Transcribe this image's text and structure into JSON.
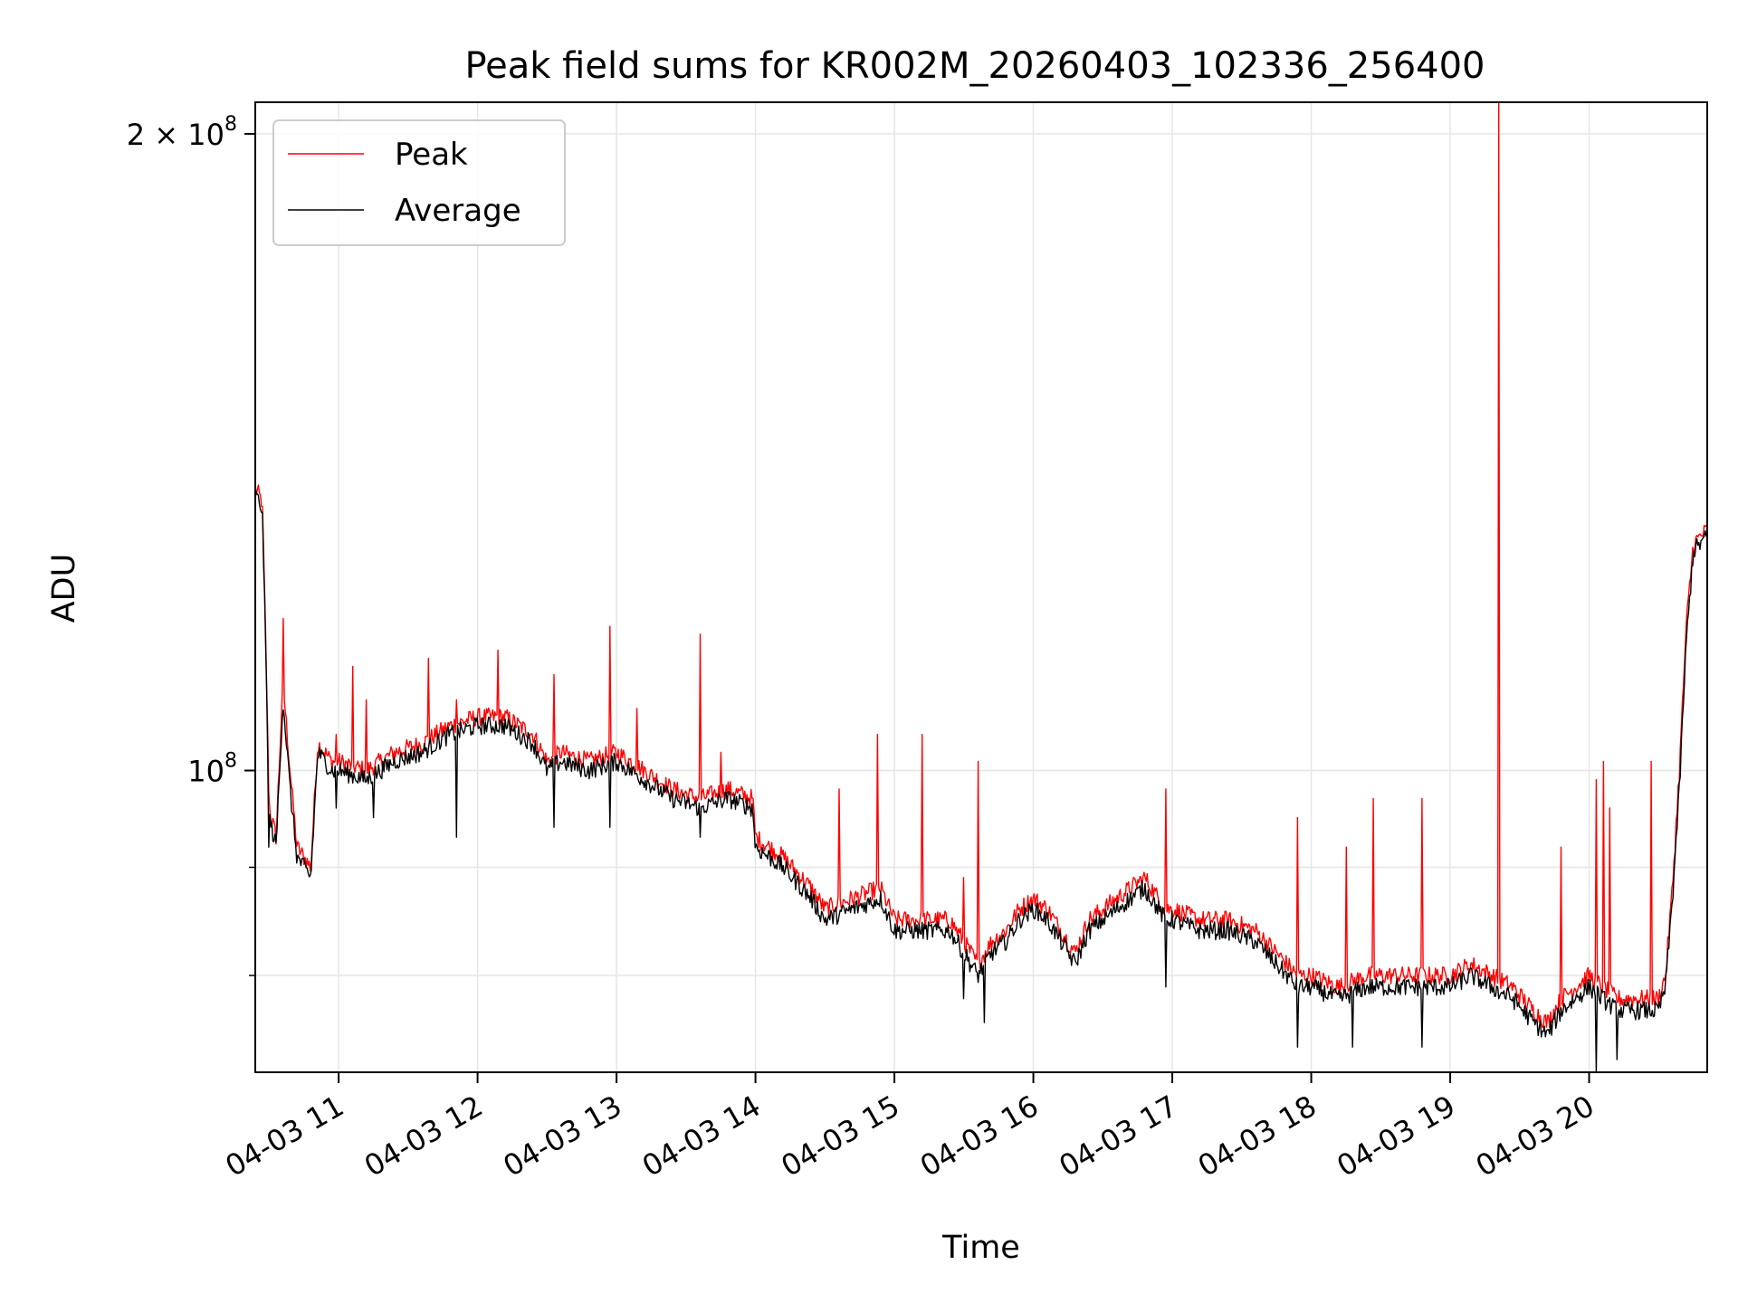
{
  "chart_data": {
    "type": "line",
    "title": "Peak field sums for KR002M_20260403_102336_256400",
    "xlabel": "Time",
    "ylabel": "ADU",
    "yscale": "log",
    "xlim": [
      10.4,
      20.85
    ],
    "ylim": [
      72000000,
      207000000
    ],
    "grid": true,
    "legend_position": "upper left",
    "x_ticks": [
      {
        "value": 11,
        "label": "04-03 11"
      },
      {
        "value": 12,
        "label": "04-03 12"
      },
      {
        "value": 13,
        "label": "04-03 13"
      },
      {
        "value": 14,
        "label": "04-03 14"
      },
      {
        "value": 15,
        "label": "04-03 15"
      },
      {
        "value": 16,
        "label": "04-03 16"
      },
      {
        "value": 17,
        "label": "04-03 17"
      },
      {
        "value": 18,
        "label": "04-03 18"
      },
      {
        "value": 19,
        "label": "04-03 19"
      },
      {
        "value": 20,
        "label": "04-03 20"
      }
    ],
    "y_ticks_major": [
      {
        "value": 100000000,
        "base": "10",
        "exp": "8",
        "mant": ""
      },
      {
        "value": 200000000,
        "base": "10",
        "exp": "8",
        "mant": "2 × "
      }
    ],
    "y_ticks_minor": [
      80000000,
      90000000
    ],
    "series": [
      {
        "name": "Peak",
        "color": "#ff0000",
        "x": [
          10.4,
          10.45,
          10.5,
          10.55,
          10.6,
          10.65,
          10.7,
          10.75,
          10.8,
          10.85,
          10.9,
          10.95,
          11.0,
          11.2,
          11.4,
          11.6,
          11.8,
          12.0,
          12.2,
          12.4,
          12.5,
          12.6,
          12.8,
          13.0,
          13.2,
          13.4,
          13.6,
          13.8,
          13.98,
          14.0,
          14.2,
          14.4,
          14.5,
          14.7,
          14.9,
          15.0,
          15.2,
          15.4,
          15.5,
          15.6,
          15.7,
          15.8,
          15.9,
          16.0,
          16.1,
          16.2,
          16.3,
          16.4,
          16.5,
          16.6,
          16.7,
          16.8,
          16.9,
          16.95,
          17.0,
          17.2,
          17.4,
          17.6,
          17.75,
          17.9,
          18.0,
          18.2,
          18.4,
          18.6,
          18.8,
          19.0,
          19.15,
          19.3,
          19.45,
          19.6,
          19.7,
          19.8,
          19.9,
          20.0,
          20.1,
          20.2,
          20.3,
          20.5,
          20.55,
          20.6,
          20.65,
          20.7,
          20.75,
          20.8,
          20.85
        ],
        "y": [
          136000000,
          134000000,
          96000000,
          93000000,
          110000000,
          100000000,
          92000000,
          91000000,
          90000000,
          103000000,
          102000000,
          101000000,
          101000000,
          100000000,
          102000000,
          103000000,
          105000000,
          106000000,
          106000000,
          104000000,
          101000000,
          102000000,
          101000000,
          102000000,
          100000000,
          98000000,
          97000000,
          98000000,
          97000000,
          93000000,
          91000000,
          88000000,
          86000000,
          87000000,
          88000000,
          85000000,
          85000000,
          85000000,
          83000000,
          81000000,
          83000000,
          84000000,
          86000000,
          87000000,
          86000000,
          84000000,
          82000000,
          85000000,
          86000000,
          87000000,
          88000000,
          89000000,
          87000000,
          86000000,
          86000000,
          85000000,
          85000000,
          84000000,
          82000000,
          80000000,
          80000000,
          79000000,
          80000000,
          80000000,
          80000000,
          80000000,
          81000000,
          80000000,
          79000000,
          77000000,
          76000000,
          78000000,
          79000000,
          80000000,
          79000000,
          78000000,
          78000000,
          78000000,
          80000000,
          88000000,
          100000000,
          117000000,
          128000000,
          129000000,
          130000000
        ],
        "spikes": [
          [
            10.6,
            118000000
          ],
          [
            10.98,
            104000000
          ],
          [
            11.1,
            112000000
          ],
          [
            11.2,
            108000000
          ],
          [
            11.65,
            113000000
          ],
          [
            11.85,
            108000000
          ],
          [
            12.15,
            114000000
          ],
          [
            12.55,
            111000000
          ],
          [
            12.95,
            117000000
          ],
          [
            13.15,
            107000000
          ],
          [
            13.6,
            116000000
          ],
          [
            13.75,
            102000000
          ],
          [
            14.6,
            98000000
          ],
          [
            14.88,
            104000000
          ],
          [
            15.2,
            104000000
          ],
          [
            15.6,
            101000000
          ],
          [
            15.5,
            89000000
          ],
          [
            16.95,
            98000000
          ],
          [
            17.9,
            95000000
          ],
          [
            18.25,
            92000000
          ],
          [
            18.45,
            97000000
          ],
          [
            18.8,
            97000000
          ],
          [
            19.35,
            207000000
          ],
          [
            19.8,
            92000000
          ],
          [
            20.05,
            99000000
          ],
          [
            20.1,
            101000000
          ],
          [
            20.15,
            96000000
          ],
          [
            20.45,
            101000000
          ]
        ]
      },
      {
        "name": "Average",
        "color": "#000000",
        "x": [
          10.4,
          10.45,
          10.5,
          10.55,
          10.6,
          10.65,
          10.7,
          10.75,
          10.8,
          10.85,
          10.9,
          10.95,
          11.0,
          11.2,
          11.4,
          11.6,
          11.8,
          12.0,
          12.2,
          12.4,
          12.5,
          12.6,
          12.8,
          13.0,
          13.2,
          13.4,
          13.6,
          13.8,
          13.98,
          14.0,
          14.2,
          14.4,
          14.5,
          14.7,
          14.9,
          15.0,
          15.2,
          15.4,
          15.5,
          15.6,
          15.7,
          15.8,
          15.9,
          16.0,
          16.1,
          16.2,
          16.3,
          16.4,
          16.5,
          16.6,
          16.7,
          16.8,
          16.9,
          16.95,
          17.0,
          17.2,
          17.4,
          17.6,
          17.75,
          17.9,
          18.0,
          18.2,
          18.4,
          18.6,
          18.8,
          19.0,
          19.15,
          19.3,
          19.45,
          19.6,
          19.7,
          19.8,
          19.9,
          20.0,
          20.1,
          20.2,
          20.3,
          20.5,
          20.55,
          20.6,
          20.65,
          20.7,
          20.75,
          20.8,
          20.85
        ],
        "y": [
          135000000,
          133000000,
          95000000,
          92000000,
          108000000,
          98000000,
          91000000,
          90000000,
          89000000,
          102000000,
          101000000,
          100000000,
          100000000,
          99000000,
          101000000,
          102000000,
          104000000,
          105000000,
          105000000,
          103000000,
          100000000,
          101000000,
          100000000,
          101000000,
          99000000,
          97000000,
          96000000,
          97000000,
          96000000,
          92000000,
          90000000,
          87000000,
          85000000,
          86000000,
          87000000,
          84000000,
          84000000,
          84000000,
          82000000,
          80000000,
          82000000,
          83000000,
          85000000,
          86000000,
          85000000,
          83000000,
          81000000,
          84000000,
          85000000,
          86000000,
          87000000,
          88000000,
          86000000,
          85000000,
          85000000,
          84000000,
          84000000,
          83000000,
          81000000,
          79000000,
          79000000,
          78000000,
          79000000,
          79000000,
          79000000,
          79000000,
          80000000,
          79000000,
          78000000,
          76000000,
          75000000,
          77000000,
          78000000,
          79000000,
          78000000,
          77000000,
          77000000,
          77000000,
          79000000,
          87000000,
          98000000,
          115000000,
          127000000,
          128000000,
          129000000
        ],
        "dips": [
          [
            10.5,
            92000000
          ],
          [
            10.98,
            96000000
          ],
          [
            11.25,
            95000000
          ],
          [
            11.85,
            93000000
          ],
          [
            12.55,
            94000000
          ],
          [
            12.95,
            94000000
          ],
          [
            13.6,
            93000000
          ],
          [
            15.5,
            78000000
          ],
          [
            15.65,
            76000000
          ],
          [
            16.95,
            79000000
          ],
          [
            17.9,
            74000000
          ],
          [
            18.3,
            74000000
          ],
          [
            18.8,
            74000000
          ],
          [
            19.35,
            78000000
          ],
          [
            20.05,
            72000000
          ],
          [
            20.2,
            73000000
          ]
        ]
      }
    ]
  }
}
